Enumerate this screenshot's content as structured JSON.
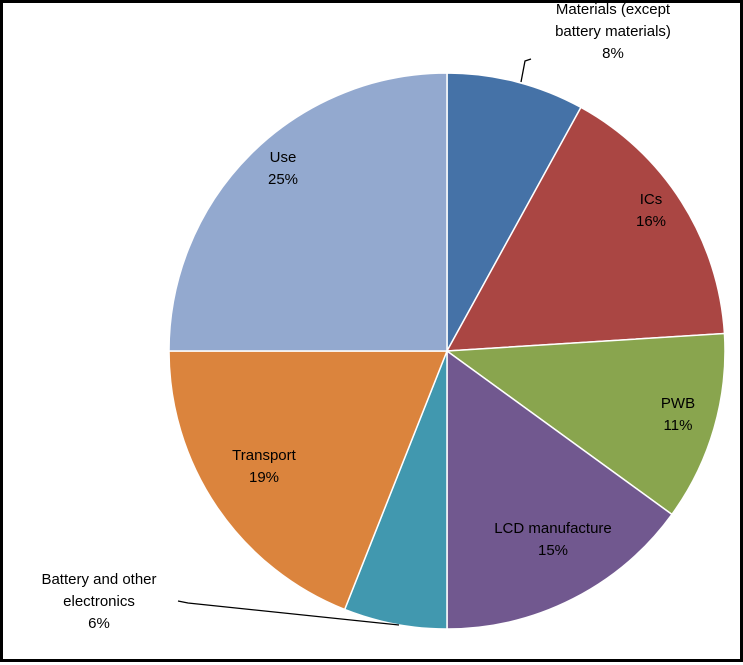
{
  "chart_data": {
    "type": "pie",
    "title": "",
    "slices": [
      {
        "label_lines": [
          "Materials (except",
          "battery materials)"
        ],
        "pct_label": "8%",
        "value": 8,
        "color": "#4572a7"
      },
      {
        "label_lines": [
          "ICs"
        ],
        "pct_label": "16%",
        "value": 16,
        "color": "#aa4643"
      },
      {
        "label_lines": [
          "PWB"
        ],
        "pct_label": "11%",
        "value": 11,
        "color": "#89a54e"
      },
      {
        "label_lines": [
          "LCD manufacture"
        ],
        "pct_label": "15%",
        "value": 15,
        "color": "#71588f"
      },
      {
        "label_lines": [
          "Battery and other",
          "electronics"
        ],
        "pct_label": "6%",
        "value": 6,
        "color": "#4198af"
      },
      {
        "label_lines": [
          "Transport"
        ],
        "pct_label": "19%",
        "value": 19,
        "color": "#db843d"
      },
      {
        "label_lines": [
          "Use"
        ],
        "pct_label": "25%",
        "value": 25,
        "color": "#93a9cf"
      }
    ]
  }
}
